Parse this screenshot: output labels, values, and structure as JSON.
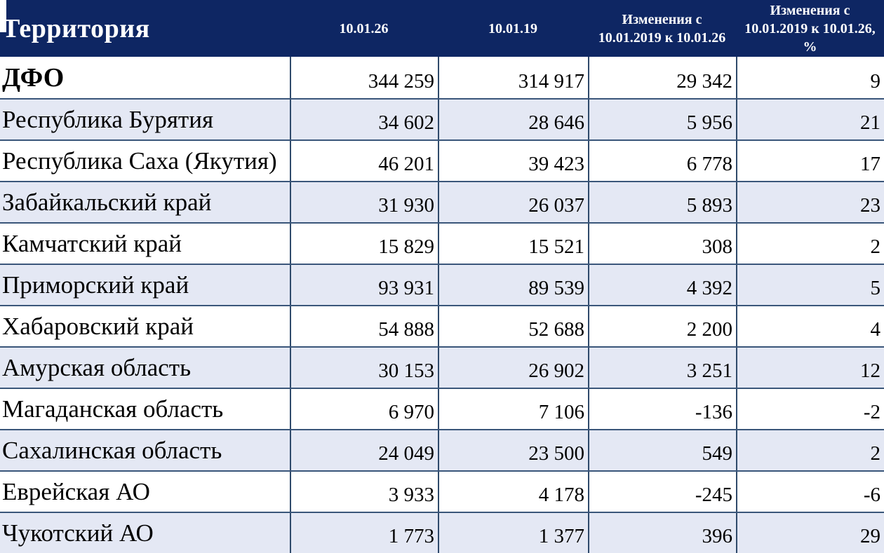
{
  "header": {
    "territory": "Территория",
    "col_current": "10.01.26",
    "col_previous": "10.01.19",
    "col_change": "Изменения с 10.01.2019 к 10.01.26",
    "col_change_pct": "Изменения с 10.01.2019 к 10.01.26, %"
  },
  "rows": [
    {
      "territory": "ДФО",
      "current": "344 259",
      "previous": "314 917",
      "change": "29 342",
      "change_pct": "9",
      "emphasis": true
    },
    {
      "territory": "Республика Бурятия",
      "current": "34 602",
      "previous": "28 646",
      "change": "5 956",
      "change_pct": "21",
      "emphasis": false
    },
    {
      "territory": "Республика Саха (Якутия)",
      "current": "46 201",
      "previous": "39 423",
      "change": "6 778",
      "change_pct": "17",
      "emphasis": false
    },
    {
      "territory": "Забайкальский край",
      "current": "31 930",
      "previous": "26 037",
      "change": "5 893",
      "change_pct": "23",
      "emphasis": false
    },
    {
      "territory": "Камчатский край",
      "current": "15 829",
      "previous": "15 521",
      "change": "308",
      "change_pct": "2",
      "emphasis": false
    },
    {
      "territory": "Приморский край",
      "current": "93 931",
      "previous": "89 539",
      "change": "4 392",
      "change_pct": "5",
      "emphasis": false
    },
    {
      "territory": "Хабаровский край",
      "current": "54 888",
      "previous": "52 688",
      "change": "2 200",
      "change_pct": "4",
      "emphasis": false
    },
    {
      "territory": "Амурская область",
      "current": "30 153",
      "previous": "26 902",
      "change": "3 251",
      "change_pct": "12",
      "emphasis": false
    },
    {
      "territory": "Магаданская область",
      "current": "6 970",
      "previous": "7 106",
      "change": "-136",
      "change_pct": "-2",
      "emphasis": false
    },
    {
      "territory": "Сахалинская область",
      "current": "24 049",
      "previous": "23 500",
      "change": "549",
      "change_pct": "2",
      "emphasis": false
    },
    {
      "territory": "Еврейская АО",
      "current": "3 933",
      "previous": "4 178",
      "change": "-245",
      "change_pct": "-6",
      "emphasis": false
    },
    {
      "territory": "Чукотский АО",
      "current": "1 773",
      "previous": "1 377",
      "change": "396",
      "change_pct": "29",
      "emphasis": false
    }
  ],
  "colors": {
    "header_bg": "#0E2663",
    "header_text": "#FFFFFF",
    "row_alt_bg": "#E4E8F4",
    "border_horizontal": "#3A567A",
    "border_vertical": "#2F4A6B"
  }
}
